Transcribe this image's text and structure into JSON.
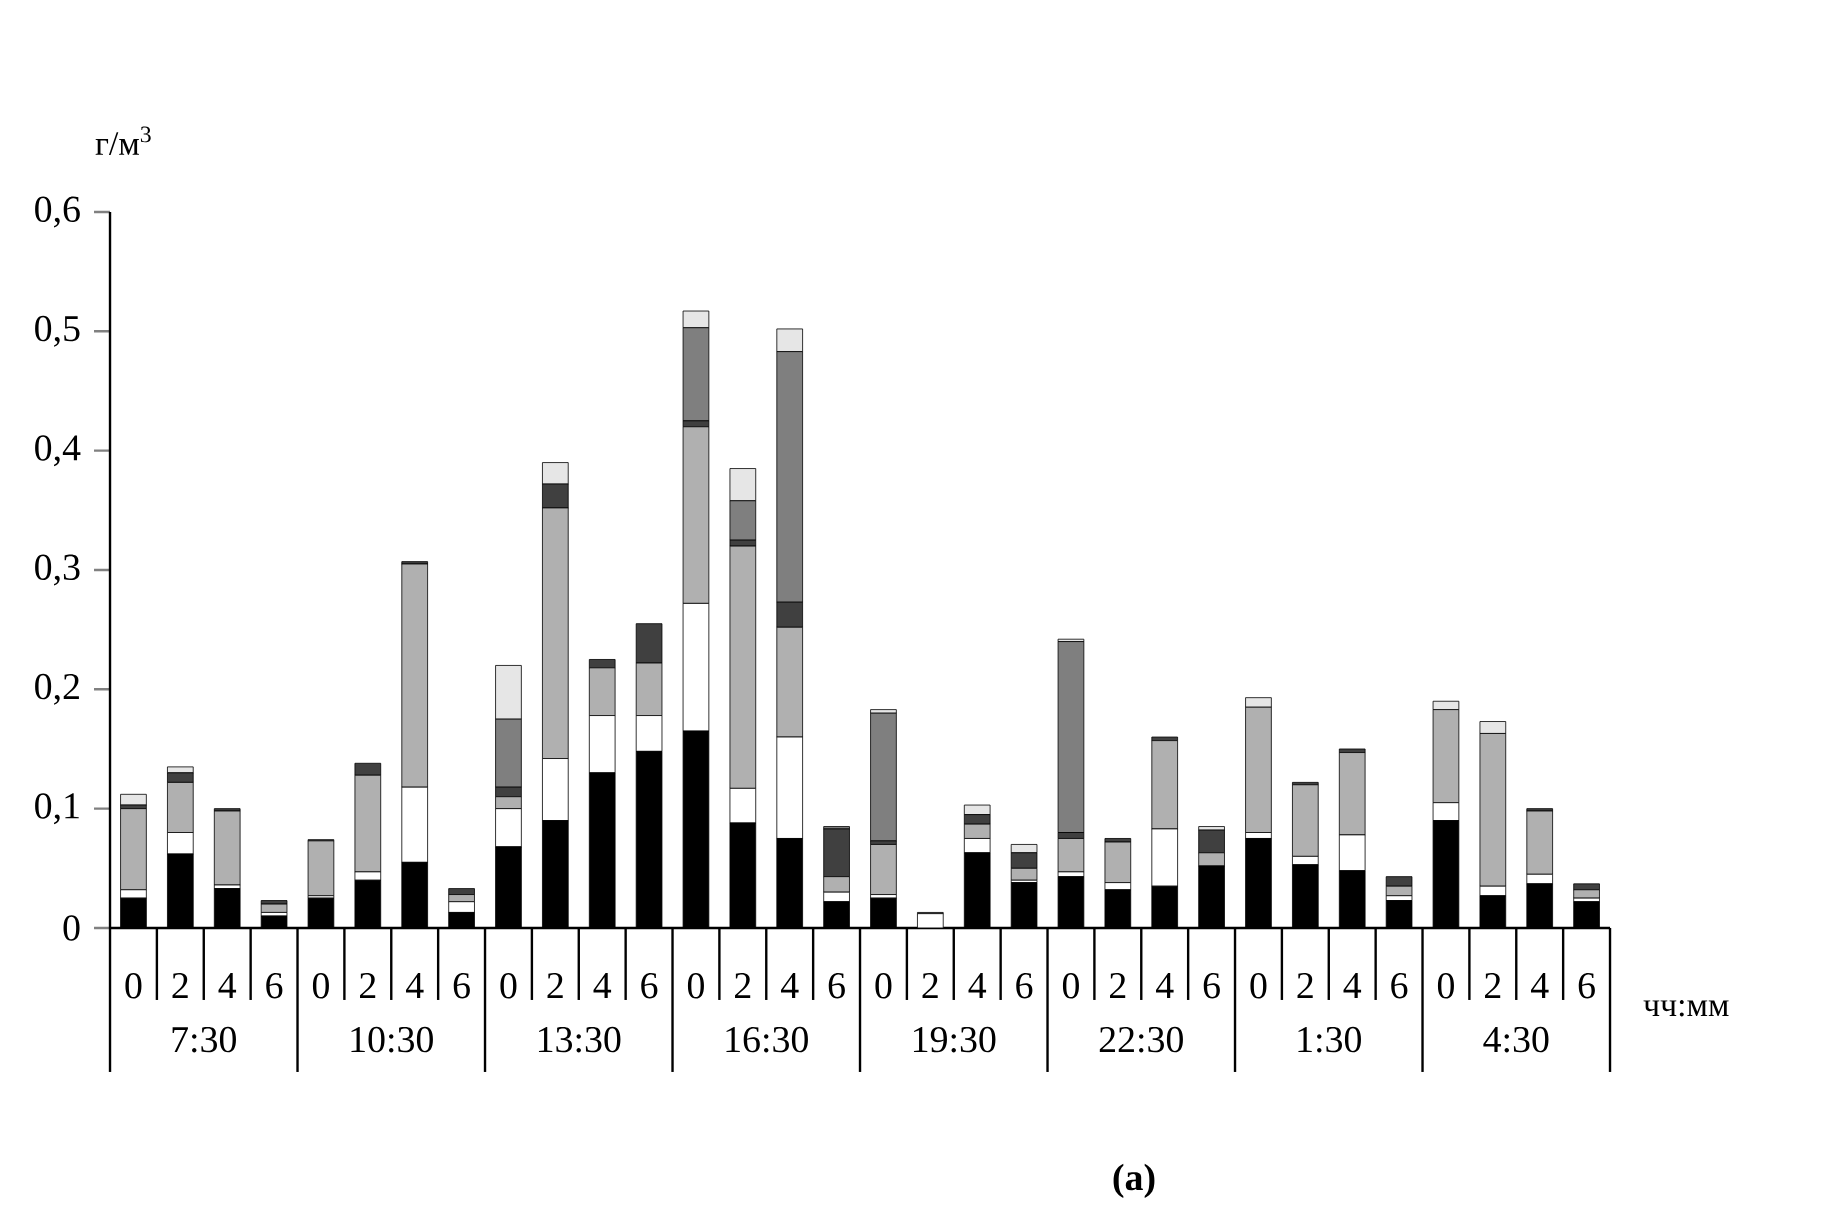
{
  "chart_data": {
    "type": "bar",
    "stacked": true,
    "xlabel": "чч:мм",
    "ylabel": "г/м$^{3}$",
    "categories": [
      "0",
      "2",
      "4",
      "6",
      "0",
      "2",
      "4",
      "6",
      "0",
      "2",
      "4",
      "6",
      "0",
      "2",
      "4",
      "6",
      "0",
      "2",
      "4",
      "6",
      "0",
      "2",
      "4",
      "6",
      "0",
      "2",
      "4",
      "6",
      "0",
      "2",
      "4",
      "6"
    ],
    "annotations": [
      "7:30",
      "10:30",
      "13:30",
      "16:30",
      "19:30",
      "22:30",
      "1:30",
      "4:30",
      "**(a)**"
    ],
    "ylim": [
      0,
      0.6
    ],
    "yticks": [
      0,
      {
        "value": 0.1,
        "label": "0,1"
      },
      {
        "value": 0.2,
        "label": "0,2"
      },
      {
        "value": 0.3,
        "label": "0,3"
      },
      {
        "value": 0.4,
        "label": "0,4"
      },
      {
        "value": 0.5,
        "label": "0,5"
      },
      {
        "value": 0.6,
        "label": "0,6"
      }
    ],
    "series": [
      {
        "color": "#000000",
        "values": [
          0.025,
          0.062,
          0.033,
          0.01,
          0.025,
          0.04,
          0.055,
          0.013,
          0.068,
          0.09,
          0.13,
          0.148,
          0.165,
          0.088,
          0.075,
          0.022,
          0.025,
          0,
          0.063,
          0.038,
          0.043,
          0.032,
          0.035,
          0.052,
          0.075,
          0.053,
          0.048,
          0.023,
          0.09,
          0.027,
          0.037,
          0.022
        ]
      },
      {
        "color": "#ffffff",
        "values": [
          0.007,
          0.018,
          0.003,
          0.003,
          0.002,
          0.007,
          0.063,
          0.009,
          0.032,
          0.052,
          0.048,
          0.03,
          0.107,
          0.029,
          0.085,
          0.008,
          0.003,
          0.012,
          0.012,
          0.002,
          0.004,
          0.006,
          0.048,
          0,
          0.005,
          0.007,
          0.03,
          0.004,
          0.015,
          0.008,
          0.008,
          0.003
        ]
      },
      {
        "color": "#b0b0b0",
        "values": [
          0.068,
          0.042,
          0.062,
          0.007,
          0.046,
          0.081,
          0.187,
          0.006,
          0.01,
          0.21,
          0.04,
          0.044,
          0.148,
          0.203,
          0.092,
          0.013,
          0.042,
          0,
          0.012,
          0.01,
          0.028,
          0.034,
          0.074,
          0.011,
          0.105,
          0.06,
          0.069,
          0.008,
          0.078,
          0.128,
          0.053,
          0.007
        ]
      },
      {
        "color": "#404040",
        "values": [
          0.003,
          0.008,
          0.002,
          0.003,
          0.001,
          0.01,
          0.002,
          0.005,
          0.008,
          0.02,
          0.007,
          0.033,
          0.005,
          0.005,
          0.021,
          0.04,
          0.003,
          0,
          0.008,
          0.013,
          0.005,
          0.003,
          0.003,
          0.019,
          0,
          0.002,
          0.003,
          0.008,
          0,
          0,
          0.002,
          0.005
        ]
      },
      {
        "color": "#7f7f7f",
        "values": [
          0,
          0,
          0,
          0,
          0,
          0,
          0,
          0,
          0.057,
          0,
          0,
          0,
          0.078,
          0.033,
          0.21,
          0.002,
          0.107,
          0.001,
          0,
          0,
          0.16,
          0,
          0,
          0,
          0,
          0,
          0,
          0,
          0,
          0,
          0,
          0
        ]
      },
      {
        "color": "#e6e6e6",
        "values": [
          0.009,
          0.005,
          0,
          0,
          0,
          0,
          0,
          0,
          0.045,
          0.018,
          0,
          0,
          0.014,
          0.027,
          0.019,
          0,
          0.003,
          0,
          0.008,
          0.007,
          0.002,
          0,
          0,
          0.003,
          0.008,
          0,
          0,
          0,
          0.007,
          0.01,
          0,
          0
        ]
      }
    ]
  }
}
